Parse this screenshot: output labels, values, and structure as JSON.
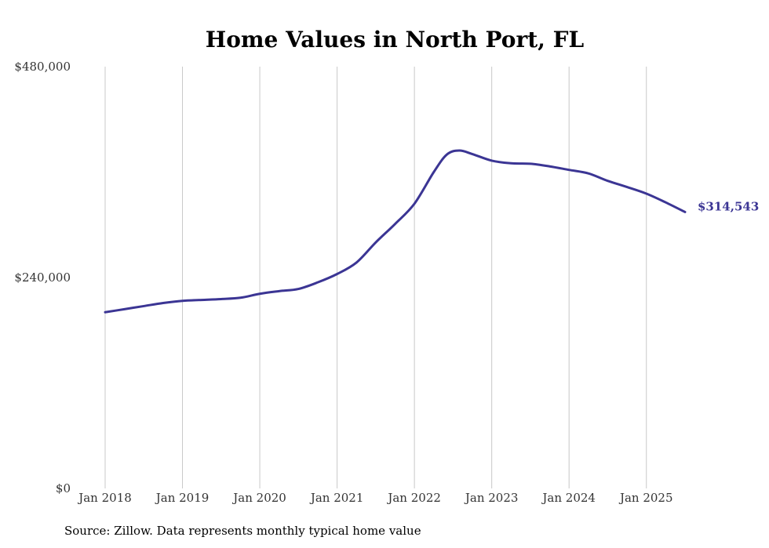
{
  "chart_data": {
    "type": "line",
    "title": "Home Values in North Port, FL",
    "source": "Source: Zillow. Data represents monthly typical home value",
    "ylim": [
      0,
      480000
    ],
    "y_ticks": [
      {
        "value": 0,
        "label": "$0"
      },
      {
        "value": 240000,
        "label": "$240,000"
      },
      {
        "value": 480000,
        "label": "$480,000"
      }
    ],
    "x_ticks": [
      {
        "value": 2018.0,
        "label": "Jan 2018"
      },
      {
        "value": 2019.0,
        "label": "Jan 2019"
      },
      {
        "value": 2020.0,
        "label": "Jan 2020"
      },
      {
        "value": 2021.0,
        "label": "Jan 2021"
      },
      {
        "value": 2022.0,
        "label": "Jan 2022"
      },
      {
        "value": 2023.0,
        "label": "Jan 2023"
      },
      {
        "value": 2024.0,
        "label": "Jan 2024"
      },
      {
        "value": 2025.0,
        "label": "Jan 2025"
      }
    ],
    "xlim": [
      2018.0,
      2025.5
    ],
    "grid": "vertical",
    "series_color": "#3b3594",
    "end_label": "$314,543",
    "series": [
      {
        "x": [
          2018.0,
          2018.25,
          2018.5,
          2018.75,
          2019.0,
          2019.25,
          2019.5,
          2019.75,
          2020.0,
          2020.25,
          2020.5,
          2020.75,
          2021.0,
          2021.25,
          2021.5,
          2021.75,
          2022.0,
          2022.25,
          2022.42,
          2022.58,
          2022.75,
          2023.0,
          2023.25,
          2023.5,
          2023.75,
          2024.0,
          2024.25,
          2024.5,
          2024.75,
          2025.0,
          2025.25,
          2025.5
        ],
        "values": [
          200500,
          204000,
          207500,
          211000,
          213500,
          214500,
          215500,
          217000,
          221500,
          224500,
          227000,
          234500,
          244000,
          257000,
          280000,
          301000,
          324000,
          360000,
          380000,
          384500,
          380500,
          373000,
          370000,
          369500,
          366500,
          362500,
          358500,
          350000,
          343000,
          335500,
          325500,
          314543
        ]
      }
    ]
  }
}
